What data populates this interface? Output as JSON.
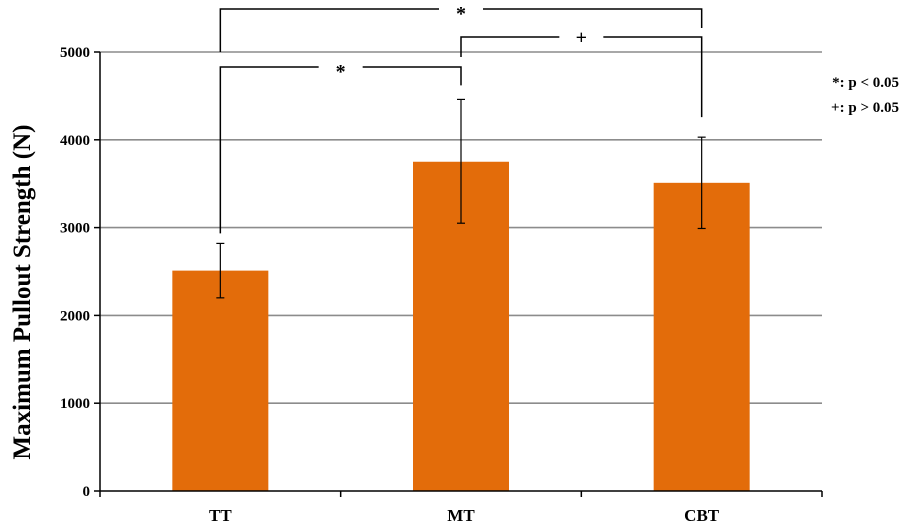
{
  "chart_data": {
    "type": "bar",
    "title": "",
    "xlabel": "",
    "ylabel": "Maximum Pullout Strength (N)",
    "categories": [
      "TT",
      "MT",
      "CBT"
    ],
    "values": [
      2510,
      3750,
      3510
    ],
    "error_low": [
      2200,
      3050,
      2990
    ],
    "error_high": [
      2820,
      4460,
      4030
    ],
    "ylim": [
      0,
      5000
    ],
    "yticks": [
      "0",
      "1000",
      "2000",
      "3000",
      "4000",
      "5000"
    ],
    "grid": true,
    "bar_color": "#E36C0A",
    "significance": [
      {
        "from": "TT",
        "to": "MT",
        "label": "*"
      },
      {
        "from": "MT",
        "to": "CBT",
        "label": "+"
      },
      {
        "from": "TT",
        "to": "CBT",
        "label": "*"
      }
    ],
    "legend": {
      "placement": "right",
      "items": [
        {
          "symbol": "*",
          "text": ": p < 0.05"
        },
        {
          "symbol": "+",
          "text": ": p > 0.05"
        }
      ]
    }
  }
}
